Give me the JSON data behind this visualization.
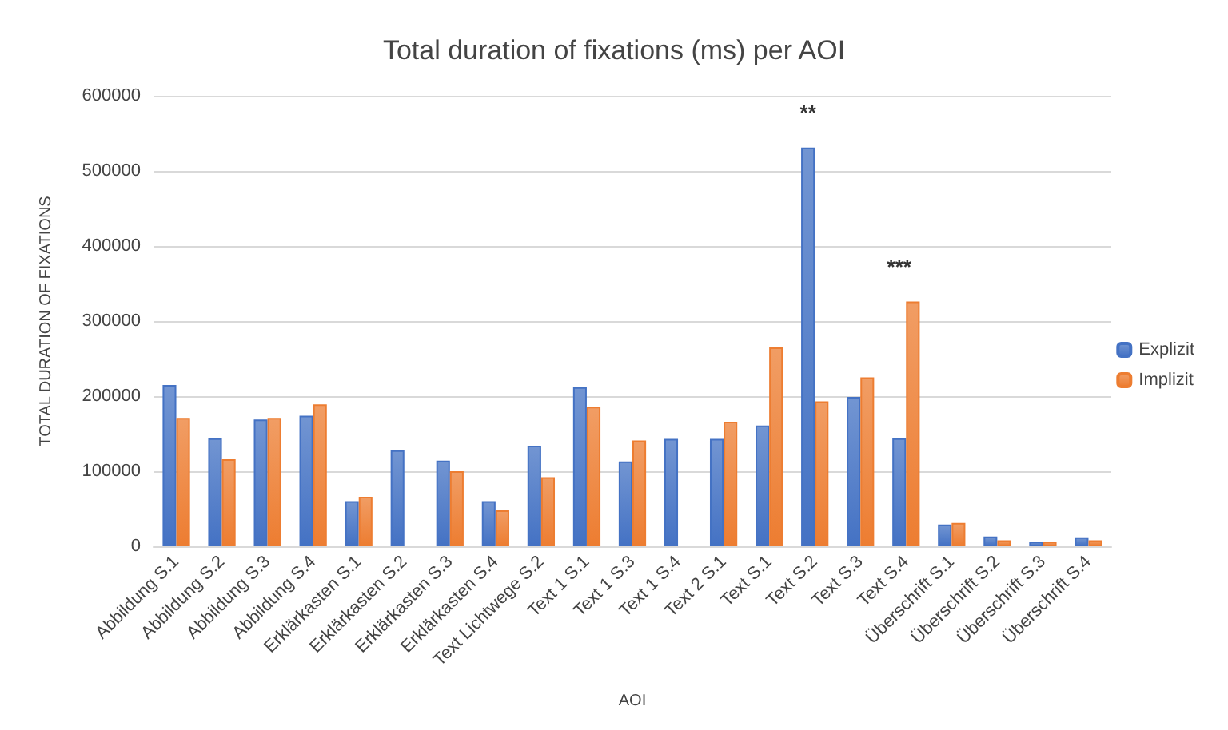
{
  "chart_data": {
    "type": "bar",
    "title": "Total duration of fixations (ms) per AOI",
    "xlabel": "AOI",
    "ylabel": "TOTAL DURATION OF FIXATIONS",
    "categories": [
      "Abbildung S.1",
      "Abbildung S.2",
      "Abbildung S.3",
      "Abbildung S.4",
      "Erklärkasten S.1",
      "Erklärkasten S.2",
      "Erklärkasten S.3",
      "Erklärkasten S.4",
      "Text Lichtwege S.2",
      "Text 1 S.1",
      "Text 1 S.3",
      "Text 1 S.4",
      "Text 2 S.1",
      "Text S.1",
      "Text S.2",
      "Text S.3",
      "Text S.4",
      "Überschrift S.1",
      "Überschrift S.2",
      "Überschrift S.3",
      "Überschrift S.4"
    ],
    "series": [
      {
        "name": "Explizit",
        "color": "#4472c4",
        "values": [
          215000,
          144000,
          169000,
          174000,
          60000,
          128000,
          114000,
          60000,
          134000,
          212000,
          113000,
          143000,
          143000,
          161000,
          531000,
          199000,
          144000,
          29000,
          13000,
          6000,
          12000
        ]
      },
      {
        "name": "Implizit",
        "color": "#ed7d31",
        "values": [
          171000,
          116000,
          171000,
          189000,
          66000,
          null,
          100000,
          48000,
          92000,
          186000,
          141000,
          null,
          166000,
          265000,
          193000,
          225000,
          326000,
          31000,
          8000,
          6000,
          8000
        ]
      }
    ],
    "ylim": [
      0,
      600000
    ],
    "yticks": [
      0,
      100000,
      200000,
      300000,
      400000,
      500000,
      600000
    ],
    "grid": "y",
    "legend": "right",
    "annotations": [
      {
        "text": "**",
        "x": "Text S.2",
        "y": 531000
      },
      {
        "text": "***",
        "x": "Text S.4",
        "y": 326000
      }
    ]
  }
}
